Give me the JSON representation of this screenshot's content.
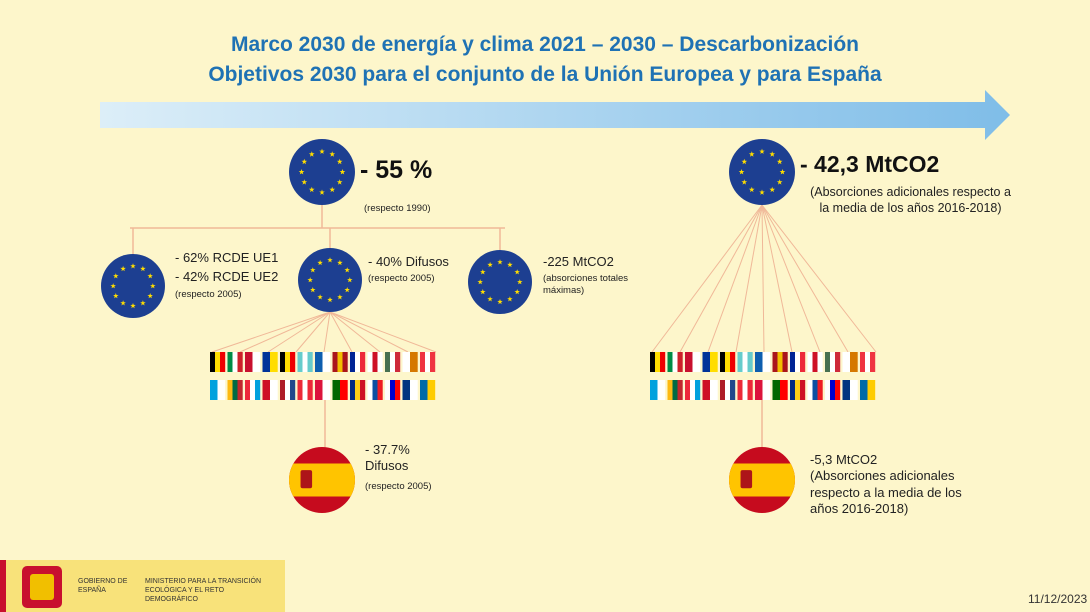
{
  "header": {
    "title": "Marco 2030 de energía y clima 2021 – 2030 – Descarbonización",
    "subtitle": "Objetivos 2030 para el conjunto de la Unión Europea y para España"
  },
  "left": {
    "eu_target": {
      "value": "- 55 %",
      "note": "(respecto 1990)"
    },
    "branches": [
      {
        "lines": [
          "- 62% RCDE UE1",
          "- 42% RCDE UE2"
        ],
        "note": "(respecto 2005)"
      },
      {
        "lines": [
          "- 40% Difusos"
        ],
        "note": "(respecto 2005)"
      },
      {
        "lines": [
          "-225 MtCO2"
        ],
        "note": "(absorciones totales máximas)"
      }
    ],
    "spain": {
      "lines": [
        "- 37.7%",
        "Difusos"
      ],
      "note": "(respecto 2005)"
    }
  },
  "right": {
    "eu_target": {
      "value": "- 42,3 MtCO2",
      "note": "(Absorciones adicionales respecto a la media de los años 2016-2018)"
    },
    "spain": {
      "value": "-5,3 MtCO2",
      "note": "(Absorciones adicionales respecto a la media de los años 2016-2018)"
    }
  },
  "footer": {
    "government": "GOBIERNO DE ESPAÑA",
    "ministry": "MINISTERIO PARA LA TRANSICIÓN ECOLÓGICA Y EL RETO DEMOGRÁFICO",
    "date": "11/12/2023"
  }
}
